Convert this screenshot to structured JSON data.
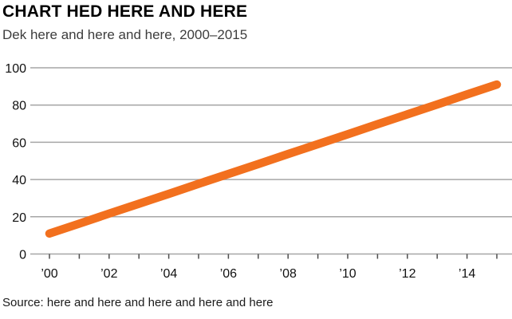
{
  "header": {
    "title": "CHART HED HERE AND HERE",
    "subtitle": "Dek here and here and here, 2000–2015"
  },
  "footer": {
    "source": "Source: here and here and here and here and here"
  },
  "colors": {
    "background": "#ffffff",
    "line": "#f2701e",
    "grid": "#a6a6a6",
    "tick": "#4d4d4d",
    "axis_label": "#111111",
    "title": "#000000",
    "subtitle": "#3d3d3d",
    "source": "#1a1a1a"
  },
  "chart_data": {
    "type": "line",
    "title": "CHART HED HERE AND HERE",
    "subtitle": "Dek here and here and here, 2000–2015",
    "source": "Source: here and here and here and here and here",
    "x": [
      2000,
      2001,
      2002,
      2003,
      2004,
      2005,
      2006,
      2007,
      2008,
      2009,
      2010,
      2011,
      2012,
      2013,
      2014,
      2015
    ],
    "series": [
      {
        "name": "value",
        "color": "#f2701e",
        "values": [
          11,
          16.3,
          21.7,
          27,
          32.3,
          37.7,
          43,
          48.3,
          53.7,
          59,
          64.3,
          69.7,
          75,
          80.3,
          85.7,
          91
        ]
      }
    ],
    "xlabel": "",
    "ylabel": "",
    "ylim": [
      0,
      100
    ],
    "yticks": [
      0,
      20,
      40,
      60,
      80,
      100
    ],
    "xtick_label_years": [
      2000,
      2002,
      2004,
      2006,
      2008,
      2010,
      2012,
      2014
    ],
    "xtick_labels": [
      "’00",
      "’02",
      "’04",
      "’06",
      "’08",
      "’10",
      "’12",
      "’14"
    ],
    "minor_ticks_every_year": true,
    "grid": "horizontal",
    "legend": "none"
  }
}
